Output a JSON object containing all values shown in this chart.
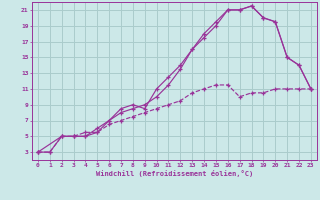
{
  "xlabel": "Windchill (Refroidissement éolien,°C)",
  "bg_color": "#cce8e8",
  "grid_color": "#aacccc",
  "line_color": "#993399",
  "xlim": [
    -0.5,
    23.5
  ],
  "ylim": [
    2.0,
    22.0
  ],
  "xticks": [
    0,
    1,
    2,
    3,
    4,
    5,
    6,
    7,
    8,
    9,
    10,
    11,
    12,
    13,
    14,
    15,
    16,
    17,
    18,
    19,
    20,
    21,
    22,
    23
  ],
  "yticks": [
    3,
    5,
    7,
    9,
    11,
    13,
    15,
    17,
    19,
    21
  ],
  "curve1_x": [
    0,
    1,
    2,
    3,
    4,
    5,
    6,
    7,
    8,
    9,
    10,
    11,
    12,
    13,
    14,
    15,
    16,
    17,
    18,
    19,
    20,
    21,
    22,
    23
  ],
  "curve1_y": [
    3,
    3,
    5,
    5,
    5,
    6,
    7,
    8.5,
    9,
    8.5,
    11,
    12.5,
    14,
    16,
    18,
    19.5,
    21,
    21,
    21.5,
    20,
    19.5,
    15,
    14,
    11
  ],
  "curve2_x": [
    0,
    2,
    3,
    4,
    5,
    6,
    7,
    8,
    9,
    10,
    11,
    12,
    13,
    14,
    15,
    16,
    17,
    18,
    19,
    20,
    21,
    22,
    23
  ],
  "curve2_y": [
    3,
    5,
    5,
    5,
    5.5,
    7,
    8,
    8.5,
    9,
    10,
    11.5,
    13.5,
    16,
    17.5,
    19,
    21,
    21,
    21.5,
    20,
    19.5,
    15,
    14,
    11
  ],
  "curve3_x": [
    0,
    1,
    2,
    3,
    4,
    5,
    6,
    7,
    8,
    9,
    10,
    11,
    12,
    13,
    14,
    15,
    16,
    17,
    18,
    19,
    20,
    21,
    22,
    23
  ],
  "curve3_y": [
    3,
    3,
    5,
    5,
    5.5,
    5.5,
    6.5,
    7,
    7.5,
    8,
    8.5,
    9,
    9.5,
    10.5,
    11,
    11.5,
    11.5,
    10,
    10.5,
    10.5,
    11,
    11,
    11,
    11
  ]
}
